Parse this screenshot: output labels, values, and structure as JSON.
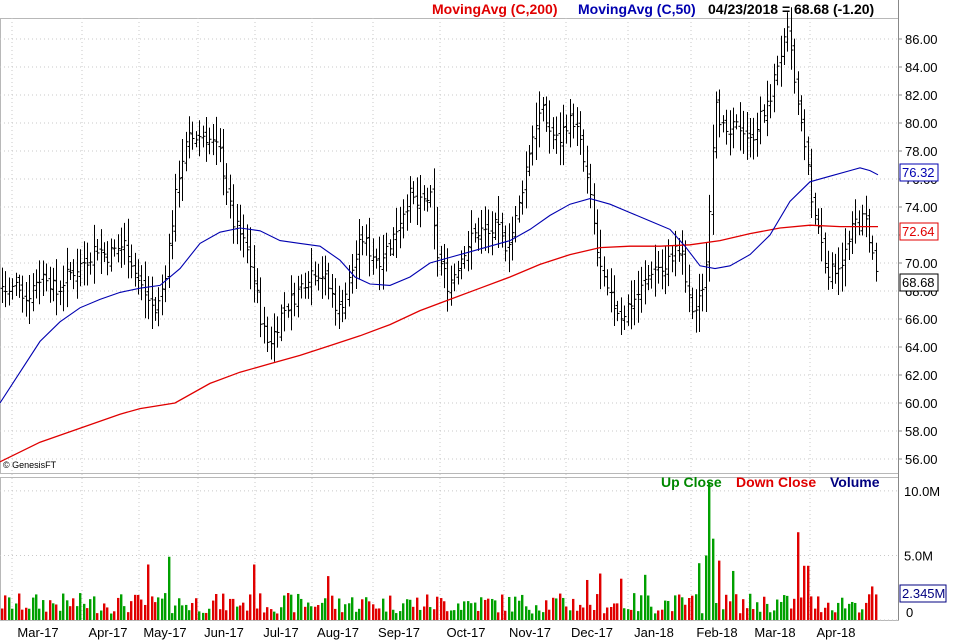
{
  "header": {
    "ma200_label": "MovingAvg (C,200)",
    "ma50_label": "MovingAvg (C,50)",
    "quote": "04/23/2018 = 68.68 (-1.20)",
    "ma200_color": "#e00000",
    "ma50_color": "#0000b0"
  },
  "watermark": "© GenesisFT",
  "volume_legend": {
    "up": "Up Close",
    "down": "Down Close",
    "volume": "Volume",
    "up_color": "#008800",
    "down_color": "#e00000",
    "volume_color": "#000080"
  },
  "badges": {
    "ma50": "76.32",
    "ma200": "72.64",
    "last": "68.68",
    "volume": "2.345M"
  },
  "chart_data": {
    "type": "ohlc_bar_with_moving_averages_and_volume",
    "price_axis": {
      "min": 55,
      "max": 87.5,
      "ticks": [
        "56.00",
        "58.00",
        "60.00",
        "62.00",
        "64.00",
        "66.00",
        "68.00",
        "70.00",
        "72.00",
        "74.00",
        "76.00",
        "78.00",
        "80.00",
        "82.00",
        "84.00",
        "86.00"
      ]
    },
    "volume_axis": {
      "min": 0,
      "max": 11000000,
      "ticks": [
        {
          "v": 0,
          "label": "0"
        },
        {
          "v": 5000000,
          "label": "5.0M"
        },
        {
          "v": 10000000,
          "label": "10.0M"
        }
      ]
    },
    "x_labels": [
      "Mar-17",
      "Apr-17",
      "May-17",
      "Jun-17",
      "Jul-17",
      "Aug-17",
      "Sep-17",
      "Oct-17",
      "Nov-17",
      "Dec-17",
      "Jan-18",
      "Feb-18",
      "Mar-18",
      "Apr-18"
    ],
    "price_path": [
      [
        0,
        68.5
      ],
      [
        8,
        67.8
      ],
      [
        18,
        68.6
      ],
      [
        26,
        67.4
      ],
      [
        36,
        68.8
      ],
      [
        46,
        69.2
      ],
      [
        56,
        67.8
      ],
      [
        66,
        69.0
      ],
      [
        76,
        69.6
      ],
      [
        86,
        70.2
      ],
      [
        96,
        71.2
      ],
      [
        106,
        70.5
      ],
      [
        116,
        71.0
      ],
      [
        126,
        71.4
      ],
      [
        136,
        69.0
      ],
      [
        146,
        67.6
      ],
      [
        156,
        66.4
      ],
      [
        164,
        68.8
      ],
      [
        172,
        73.0
      ],
      [
        180,
        77.0
      ],
      [
        188,
        78.8
      ],
      [
        196,
        79.0
      ],
      [
        204,
        79.2
      ],
      [
        212,
        78.6
      ],
      [
        220,
        77.8
      ],
      [
        226,
        75.5
      ],
      [
        232,
        73.0
      ],
      [
        240,
        72.0
      ],
      [
        248,
        70.6
      ],
      [
        256,
        68.0
      ],
      [
        262,
        65.5
      ],
      [
        268,
        64.2
      ],
      [
        274,
        65.0
      ],
      [
        282,
        66.5
      ],
      [
        290,
        67.2
      ],
      [
        298,
        68.0
      ],
      [
        306,
        69.0
      ],
      [
        314,
        69.6
      ],
      [
        322,
        69.2
      ],
      [
        330,
        68.0
      ],
      [
        338,
        66.6
      ],
      [
        346,
        68.0
      ],
      [
        354,
        70.0
      ],
      [
        362,
        71.8
      ],
      [
        370,
        70.8
      ],
      [
        378,
        70.2
      ],
      [
        386,
        71.0
      ],
      [
        394,
        72.0
      ],
      [
        402,
        73.6
      ],
      [
        410,
        74.8
      ],
      [
        418,
        74.0
      ],
      [
        424,
        74.4
      ],
      [
        430,
        74.8
      ],
      [
        436,
        70.8
      ],
      [
        442,
        69.6
      ],
      [
        448,
        68.4
      ],
      [
        456,
        69.6
      ],
      [
        464,
        71.0
      ],
      [
        472,
        71.8
      ],
      [
        480,
        72.4
      ],
      [
        488,
        72.0
      ],
      [
        496,
        72.6
      ],
      [
        504,
        71.2
      ],
      [
        512,
        72.2
      ],
      [
        518,
        73.8
      ],
      [
        524,
        76.2
      ],
      [
        530,
        78.4
      ],
      [
        536,
        80.2
      ],
      [
        542,
        80.8
      ],
      [
        550,
        79.4
      ],
      [
        558,
        78.6
      ],
      [
        566,
        80.0
      ],
      [
        574,
        80.2
      ],
      [
        580,
        78.4
      ],
      [
        586,
        76.2
      ],
      [
        592,
        73.6
      ],
      [
        598,
        70.2
      ],
      [
        604,
        68.4
      ],
      [
        610,
        67.4
      ],
      [
        616,
        66.8
      ],
      [
        622,
        66.2
      ],
      [
        628,
        67.0
      ],
      [
        634,
        67.4
      ],
      [
        640,
        68.0
      ],
      [
        646,
        68.8
      ],
      [
        652,
        69.6
      ],
      [
        658,
        69.8
      ],
      [
        664,
        69.2
      ],
      [
        670,
        70.4
      ],
      [
        676,
        71.0
      ],
      [
        682,
        70.4
      ],
      [
        688,
        67.4
      ],
      [
        694,
        66.4
      ],
      [
        700,
        67.4
      ],
      [
        706,
        70.0
      ],
      [
        712,
        78.0
      ],
      [
        716,
        82.0
      ],
      [
        720,
        80.2
      ],
      [
        726,
        78.8
      ],
      [
        734,
        79.6
      ],
      [
        742,
        79.8
      ],
      [
        750,
        78.6
      ],
      [
        758,
        80.2
      ],
      [
        766,
        80.8
      ],
      [
        772,
        82.4
      ],
      [
        778,
        84.6
      ],
      [
        784,
        85.6
      ],
      [
        788,
        86.4
      ],
      [
        792,
        84.0
      ],
      [
        796,
        82.0
      ],
      [
        800,
        80.0
      ],
      [
        804,
        79.0
      ],
      [
        808,
        76.4
      ],
      [
        812,
        74.0
      ],
      [
        818,
        72.6
      ],
      [
        824,
        70.4
      ],
      [
        830,
        69.2
      ],
      [
        836,
        69.8
      ],
      [
        842,
        70.2
      ],
      [
        848,
        71.2
      ],
      [
        854,
        72.8
      ],
      [
        860,
        73.2
      ],
      [
        866,
        72.8
      ],
      [
        870,
        71.6
      ],
      [
        874,
        69.8
      ],
      [
        878,
        68.7
      ]
    ],
    "ma50_path": [
      [
        0,
        60.0
      ],
      [
        20,
        62.2
      ],
      [
        40,
        64.4
      ],
      [
        60,
        65.8
      ],
      [
        80,
        66.8
      ],
      [
        100,
        67.4
      ],
      [
        120,
        67.9
      ],
      [
        140,
        68.2
      ],
      [
        160,
        68.4
      ],
      [
        180,
        69.6
      ],
      [
        200,
        71.4
      ],
      [
        220,
        72.2
      ],
      [
        240,
        72.5
      ],
      [
        260,
        72.3
      ],
      [
        280,
        71.6
      ],
      [
        300,
        71.4
      ],
      [
        320,
        71.2
      ],
      [
        340,
        70.2
      ],
      [
        355,
        69.0
      ],
      [
        370,
        68.5
      ],
      [
        390,
        68.4
      ],
      [
        410,
        69.0
      ],
      [
        430,
        70.0
      ],
      [
        450,
        70.4
      ],
      [
        470,
        70.8
      ],
      [
        490,
        71.2
      ],
      [
        510,
        71.6
      ],
      [
        530,
        72.4
      ],
      [
        550,
        73.4
      ],
      [
        570,
        74.2
      ],
      [
        590,
        74.6
      ],
      [
        610,
        74.2
      ],
      [
        630,
        73.6
      ],
      [
        650,
        73.0
      ],
      [
        670,
        72.4
      ],
      [
        685,
        71.2
      ],
      [
        700,
        69.8
      ],
      [
        715,
        69.6
      ],
      [
        730,
        69.8
      ],
      [
        750,
        70.6
      ],
      [
        770,
        72.0
      ],
      [
        790,
        74.4
      ],
      [
        810,
        75.8
      ],
      [
        830,
        76.2
      ],
      [
        850,
        76.6
      ],
      [
        860,
        76.8
      ],
      [
        870,
        76.6
      ],
      [
        878,
        76.3
      ]
    ],
    "ma200_path": [
      [
        0,
        55.8
      ],
      [
        40,
        57.2
      ],
      [
        80,
        58.2
      ],
      [
        120,
        59.2
      ],
      [
        140,
        59.6
      ],
      [
        175,
        60.0
      ],
      [
        210,
        61.4
      ],
      [
        240,
        62.2
      ],
      [
        270,
        62.8
      ],
      [
        300,
        63.4
      ],
      [
        330,
        64.1
      ],
      [
        360,
        64.8
      ],
      [
        390,
        65.6
      ],
      [
        420,
        66.6
      ],
      [
        450,
        67.4
      ],
      [
        480,
        68.2
      ],
      [
        510,
        69.0
      ],
      [
        540,
        69.9
      ],
      [
        570,
        70.6
      ],
      [
        600,
        71.1
      ],
      [
        630,
        71.2
      ],
      [
        660,
        71.2
      ],
      [
        690,
        71.3
      ],
      [
        720,
        71.6
      ],
      [
        750,
        72.1
      ],
      [
        780,
        72.5
      ],
      [
        810,
        72.7
      ],
      [
        840,
        72.6
      ],
      [
        878,
        72.6
      ]
    ],
    "volume_spikes": [
      [
        148,
        4300000.0
      ],
      [
        168,
        4900000.0
      ],
      [
        254,
        4300000.0
      ],
      [
        328,
        3400000.0
      ],
      [
        586,
        3100000.0
      ],
      [
        600,
        3600000.0
      ],
      [
        620,
        3200000.0
      ],
      [
        644,
        3500000.0
      ],
      [
        700,
        4400000.0
      ],
      [
        706,
        5000000.0
      ],
      [
        710,
        10700000.0
      ],
      [
        714,
        6300000.0
      ],
      [
        720,
        4600000.0
      ],
      [
        732,
        3800000.0
      ],
      [
        798,
        6800000.0
      ],
      [
        806,
        4200000.0
      ],
      [
        872,
        2600000.0
      ]
    ]
  }
}
